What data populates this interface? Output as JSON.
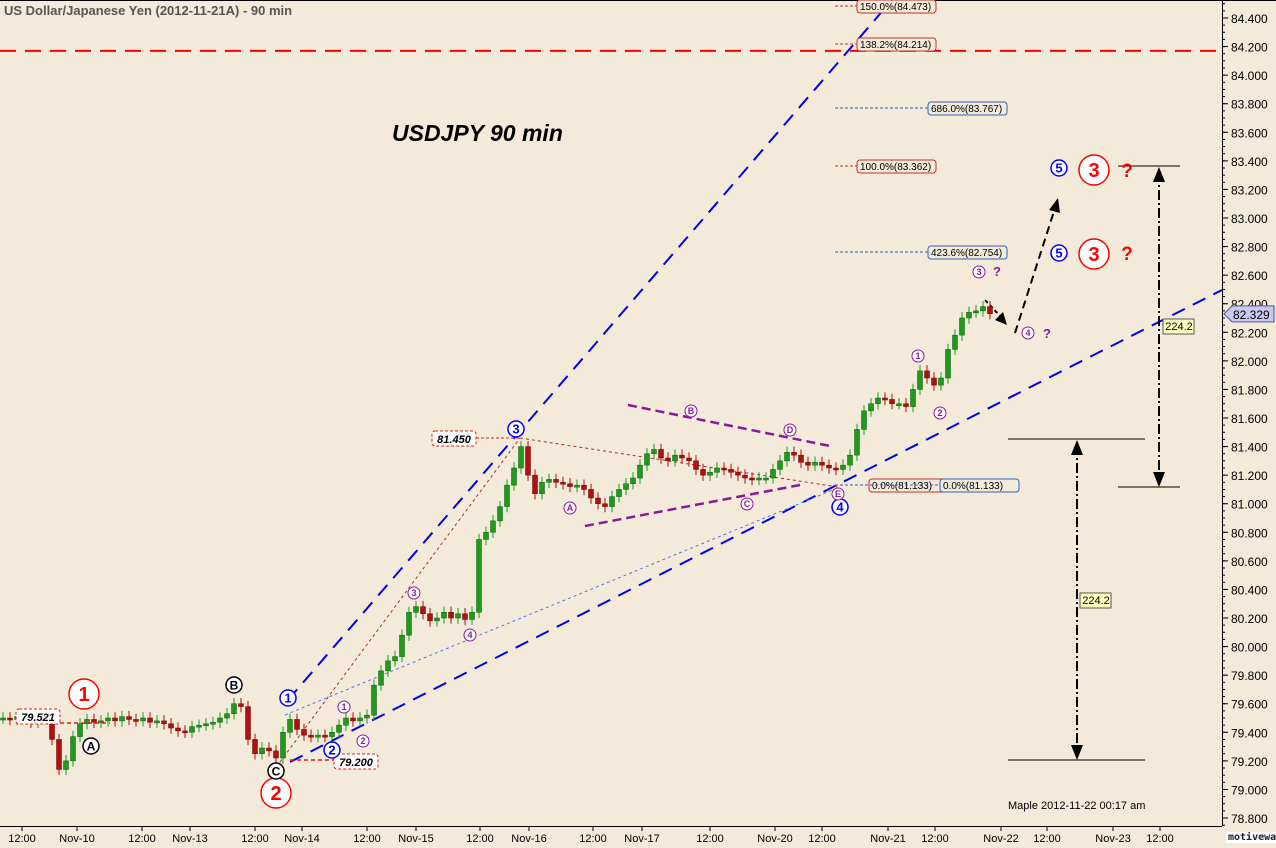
{
  "header": {
    "title": "US Dollar/Japanese Yen (2012-11-21A) - 90 min"
  },
  "chart_data": {
    "type": "candlestick",
    "title": "USDJPY  90 min",
    "ylim": [
      78.7,
      84.55
    ],
    "y_ticks": [
      "78.800",
      "79.000",
      "79.200",
      "79.400",
      "79.600",
      "79.800",
      "80.000",
      "80.200",
      "80.400",
      "80.600",
      "80.800",
      "81.000",
      "81.200",
      "81.400",
      "81.600",
      "81.800",
      "82.000",
      "82.200",
      "82.400",
      "82.600",
      "82.800",
      "83.000",
      "83.200",
      "83.400",
      "83.600",
      "83.800",
      "84.000",
      "84.200",
      "84.400"
    ],
    "x_ticks": [
      "12:00",
      "Nov-10",
      "12:00",
      "Nov-13",
      "12:00",
      "Nov-14",
      "12:00",
      "Nov-15",
      "12:00",
      "Nov-16",
      "12:00",
      "Nov-17",
      "12:00",
      "Nov-20",
      "12:00",
      "Nov-21",
      "12:00",
      "Nov-22",
      "12:00",
      "Nov-23",
      "12:00"
    ],
    "closes": [
      79.5,
      79.49,
      79.51,
      79.5,
      79.47,
      79.5,
      79.52,
      79.35,
      79.14,
      79.2,
      79.37,
      79.46,
      79.49,
      79.47,
      79.48,
      79.5,
      79.48,
      79.51,
      79.49,
      79.48,
      79.5,
      79.47,
      79.48,
      79.46,
      79.43,
      79.41,
      79.4,
      79.44,
      79.45,
      79.46,
      79.47,
      79.5,
      79.53,
      79.6,
      79.58,
      79.35,
      79.25,
      79.29,
      79.27,
      79.22,
      79.4,
      79.49,
      79.42,
      79.38,
      79.37,
      79.38,
      79.37,
      79.4,
      79.45,
      79.5,
      79.48,
      79.5,
      79.52,
      79.73,
      79.83,
      79.9,
      79.93,
      80.08,
      80.24,
      80.28,
      80.23,
      80.18,
      80.2,
      80.24,
      80.2,
      80.23,
      80.19,
      80.24,
      80.75,
      80.8,
      80.88,
      80.98,
      81.13,
      81.25,
      81.4,
      81.2,
      81.07,
      81.15,
      81.17,
      81.15,
      81.14,
      81.12,
      81.13,
      81.1,
      81.04,
      81.0,
      80.98,
      81.05,
      81.1,
      81.14,
      81.18,
      81.27,
      81.35,
      81.38,
      81.32,
      81.3,
      81.34,
      81.32,
      81.3,
      81.24,
      81.2,
      81.22,
      81.25,
      81.24,
      81.22,
      81.2,
      81.18,
      81.17,
      81.18,
      81.18,
      81.24,
      81.3,
      81.36,
      81.34,
      81.29,
      81.27,
      81.29,
      81.27,
      81.25,
      81.24,
      81.27,
      81.34,
      81.52,
      81.65,
      81.7,
      81.74,
      81.73,
      81.7,
      81.7,
      81.68,
      81.8,
      81.93,
      81.88,
      81.83,
      81.88,
      82.08,
      82.18,
      82.3,
      82.34,
      82.35,
      82.38,
      82.33
    ],
    "last_price": "82.329",
    "colors": {
      "up": "#1f9a1f",
      "down": "#b01010",
      "background": "#f3ead9",
      "resistance": "#ff0000",
      "channel": "#0000ff"
    },
    "resistance_level": 84.17,
    "fib_levels": [
      {
        "label": "150.0%(84.473)",
        "color": "#c03030"
      },
      {
        "label": "138.2%(84.214)",
        "color": "#c03030"
      },
      {
        "label": "686.0%(83.767)",
        "color": "#3060c0"
      },
      {
        "label": "100.0%(83.362)",
        "color": "#c03030"
      },
      {
        "label": "423.6%(82.754)",
        "color": "#3060c0"
      },
      {
        "label": "0.0%(81.133)",
        "color": "#c03030"
      },
      {
        "label": "0.0%(81.133)",
        "color": "#3060c0"
      }
    ],
    "price_boxes": [
      "79.521",
      "79.200",
      "81.450"
    ],
    "measure_labels": [
      "224.2",
      "224.2"
    ],
    "wave_labels": [
      {
        "t": "1",
        "style": "red"
      },
      {
        "t": "2",
        "style": "red"
      },
      {
        "t": "A",
        "style": "black"
      },
      {
        "t": "B",
        "style": "black"
      },
      {
        "t": "C",
        "style": "black"
      },
      {
        "t": "1",
        "style": "blue"
      },
      {
        "t": "2",
        "style": "blue"
      },
      {
        "t": "3",
        "style": "blue"
      },
      {
        "t": "4",
        "style": "blue"
      },
      {
        "t": "5",
        "style": "blue"
      },
      {
        "t": "5",
        "style": "blue"
      },
      {
        "t": "1",
        "style": "purple"
      },
      {
        "t": "2",
        "style": "purple"
      },
      {
        "t": "3",
        "style": "purple"
      },
      {
        "t": "4",
        "style": "purple"
      },
      {
        "t": "A",
        "style": "purple"
      },
      {
        "t": "B",
        "style": "purple"
      },
      {
        "t": "C",
        "style": "purple"
      },
      {
        "t": "D",
        "style": "purple"
      },
      {
        "t": "E",
        "style": "purple"
      },
      {
        "t": "1",
        "style": "purple"
      },
      {
        "t": "2",
        "style": "purple"
      },
      {
        "t": "3",
        "style": "purple"
      },
      {
        "t": "4",
        "style": "purple"
      },
      {
        "t": "3",
        "style": "red"
      },
      {
        "t": "3",
        "style": "red"
      }
    ],
    "question_marks": [
      "?",
      "?",
      "?",
      "?"
    ]
  },
  "footer": {
    "stamp": "Maple  2012-11-22  00:17 am",
    "watermark": "motivewave.com"
  }
}
